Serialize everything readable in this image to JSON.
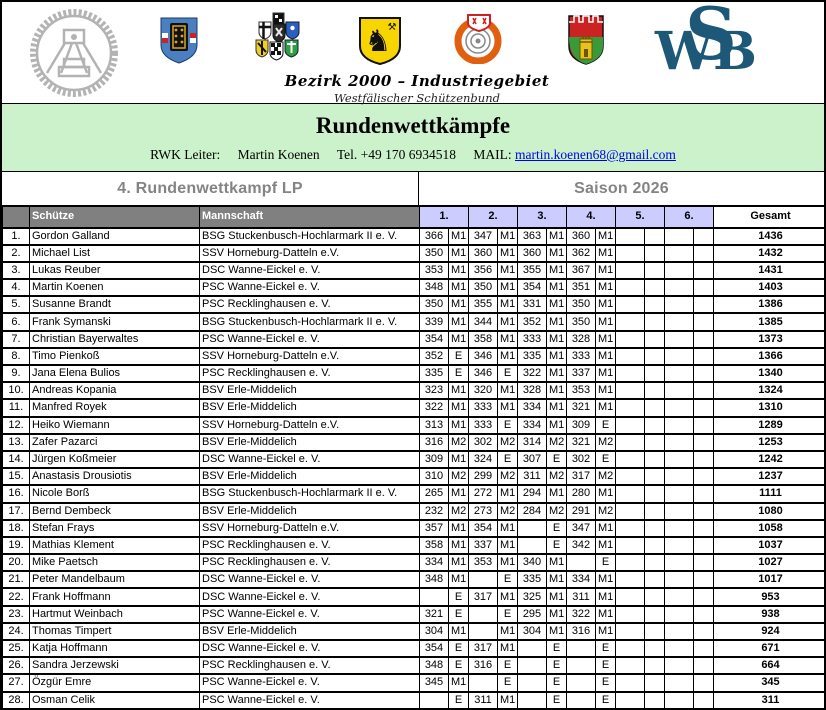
{
  "header": {
    "region_title": "Bezirk 2000 – Industriegebiet",
    "region_subtitle": "Westfälischer Schützenbund",
    "logos": [
      "mining-club-logo",
      "blue-gate-crest",
      "district-arms-cluster",
      "yellow-horse-crest",
      "round-target-badge",
      "castle-crest",
      "wsb-monogram"
    ],
    "wsb_letters": {
      "w": "W",
      "s": "S",
      "b": "B"
    }
  },
  "banner": {
    "title": "Rundenwettkämpfe",
    "contact_prefix": "RWK Leiter:",
    "leader_name": "Martin Koenen",
    "tel_label": "Tel.",
    "tel_number": "+49 170 6934518",
    "mail_label": "MAIL:",
    "mail_address": "martin.koenen68@gmail.com"
  },
  "section": {
    "left_title": "4. Rundenwettkampf LP",
    "right_title": "Saison 2026"
  },
  "table": {
    "columns": {
      "schuetze": "Schütze",
      "mannschaft": "Mannschaft",
      "rounds": [
        "1.",
        "2.",
        "3.",
        "4.",
        "5.",
        "6."
      ],
      "gesamt": "Gesamt"
    },
    "rows": [
      {
        "rank": "1.",
        "name": "Gordon Galland",
        "team": "BSG Stuckenbusch-Hochlarmark II e. V.",
        "rounds": [
          [
            "366",
            "M1"
          ],
          [
            "347",
            "M1"
          ],
          [
            "363",
            "M1"
          ],
          [
            "360",
            "M1"
          ],
          [
            "",
            ""
          ],
          [
            "",
            ""
          ]
        ],
        "gesamt": "1436"
      },
      {
        "rank": "2.",
        "name": "Michael List",
        "team": "SSV Horneburg-Datteln e.V.",
        "rounds": [
          [
            "350",
            "M1"
          ],
          [
            "360",
            "M1"
          ],
          [
            "360",
            "M1"
          ],
          [
            "362",
            "M1"
          ],
          [
            "",
            ""
          ],
          [
            "",
            ""
          ]
        ],
        "gesamt": "1432"
      },
      {
        "rank": "3.",
        "name": "Lukas Reuber",
        "team": "DSC Wanne-Eickel e. V.",
        "rounds": [
          [
            "353",
            "M1"
          ],
          [
            "356",
            "M1"
          ],
          [
            "355",
            "M1"
          ],
          [
            "367",
            "M1"
          ],
          [
            "",
            ""
          ],
          [
            "",
            ""
          ]
        ],
        "gesamt": "1431"
      },
      {
        "rank": "4.",
        "name": "Martin Koenen",
        "team": "PSC Wanne-Eickel e. V.",
        "rounds": [
          [
            "348",
            "M1"
          ],
          [
            "350",
            "M1"
          ],
          [
            "354",
            "M1"
          ],
          [
            "351",
            "M1"
          ],
          [
            "",
            ""
          ],
          [
            "",
            ""
          ]
        ],
        "gesamt": "1403"
      },
      {
        "rank": "5.",
        "name": "Susanne Brandt",
        "team": "PSC Recklinghausen e. V.",
        "rounds": [
          [
            "350",
            "M1"
          ],
          [
            "355",
            "M1"
          ],
          [
            "331",
            "M1"
          ],
          [
            "350",
            "M1"
          ],
          [
            "",
            ""
          ],
          [
            "",
            ""
          ]
        ],
        "gesamt": "1386"
      },
      {
        "rank": "6.",
        "name": "Frank Symanski",
        "team": "BSG Stuckenbusch-Hochlarmark II e. V.",
        "rounds": [
          [
            "339",
            "M1"
          ],
          [
            "344",
            "M1"
          ],
          [
            "352",
            "M1"
          ],
          [
            "350",
            "M1"
          ],
          [
            "",
            ""
          ],
          [
            "",
            ""
          ]
        ],
        "gesamt": "1385"
      },
      {
        "rank": "7.",
        "name": "Christian Bayerwaltes",
        "team": "PSC Wanne-Eickel e. V.",
        "rounds": [
          [
            "354",
            "M1"
          ],
          [
            "358",
            "M1"
          ],
          [
            "333",
            "M1"
          ],
          [
            "328",
            "M1"
          ],
          [
            "",
            ""
          ],
          [
            "",
            ""
          ]
        ],
        "gesamt": "1373"
      },
      {
        "rank": "8.",
        "name": "Timo Pienkoß",
        "team": "SSV Horneburg-Datteln e.V.",
        "rounds": [
          [
            "352",
            "E"
          ],
          [
            "346",
            "M1"
          ],
          [
            "335",
            "M1"
          ],
          [
            "333",
            "M1"
          ],
          [
            "",
            ""
          ],
          [
            "",
            ""
          ]
        ],
        "gesamt": "1366"
      },
      {
        "rank": "9.",
        "name": "Jana Elena Bulios",
        "team": "PSC Recklinghausen e. V.",
        "rounds": [
          [
            "335",
            "E"
          ],
          [
            "346",
            "E"
          ],
          [
            "322",
            "M1"
          ],
          [
            "337",
            "M1"
          ],
          [
            "",
            ""
          ],
          [
            "",
            ""
          ]
        ],
        "gesamt": "1340"
      },
      {
        "rank": "10.",
        "name": "Andreas Kopania",
        "team": "BSV Erle-Middelich",
        "rounds": [
          [
            "323",
            "M1"
          ],
          [
            "320",
            "M1"
          ],
          [
            "328",
            "M1"
          ],
          [
            "353",
            "M1"
          ],
          [
            "",
            ""
          ],
          [
            "",
            ""
          ]
        ],
        "gesamt": "1324"
      },
      {
        "rank": "11.",
        "name": "Manfred Royek",
        "team": "BSV Erle-Middelich",
        "rounds": [
          [
            "322",
            "M1"
          ],
          [
            "333",
            "M1"
          ],
          [
            "334",
            "M1"
          ],
          [
            "321",
            "M1"
          ],
          [
            "",
            ""
          ],
          [
            "",
            ""
          ]
        ],
        "gesamt": "1310"
      },
      {
        "rank": "12.",
        "name": "Heiko Wiemann",
        "team": "SSV Horneburg-Datteln e.V.",
        "rounds": [
          [
            "313",
            "M1"
          ],
          [
            "333",
            "E"
          ],
          [
            "334",
            "M1"
          ],
          [
            "309",
            "E"
          ],
          [
            "",
            ""
          ],
          [
            "",
            ""
          ]
        ],
        "gesamt": "1289"
      },
      {
        "rank": "13.",
        "name": "Zafer Pazarci",
        "team": "BSV Erle-Middelich",
        "rounds": [
          [
            "316",
            "M2"
          ],
          [
            "302",
            "M2"
          ],
          [
            "314",
            "M2"
          ],
          [
            "321",
            "M2"
          ],
          [
            "",
            ""
          ],
          [
            "",
            ""
          ]
        ],
        "gesamt": "1253"
      },
      {
        "rank": "14.",
        "name": "Jürgen Koßmeier",
        "team": "DSC Wanne-Eickel e. V.",
        "rounds": [
          [
            "309",
            "M1"
          ],
          [
            "324",
            "E"
          ],
          [
            "307",
            "E"
          ],
          [
            "302",
            "E"
          ],
          [
            "",
            ""
          ],
          [
            "",
            ""
          ]
        ],
        "gesamt": "1242"
      },
      {
        "rank": "15.",
        "name": "Anastasis Drousiotis",
        "team": "BSV Erle-Middelich",
        "rounds": [
          [
            "310",
            "M2"
          ],
          [
            "299",
            "M2"
          ],
          [
            "311",
            "M2"
          ],
          [
            "317",
            "M2"
          ],
          [
            "",
            ""
          ],
          [
            "",
            ""
          ]
        ],
        "gesamt": "1237"
      },
      {
        "rank": "16.",
        "name": "Nicole Borß",
        "team": "BSG Stuckenbusch-Hochlarmark II e. V.",
        "rounds": [
          [
            "265",
            "M1"
          ],
          [
            "272",
            "M1"
          ],
          [
            "294",
            "M1"
          ],
          [
            "280",
            "M1"
          ],
          [
            "",
            ""
          ],
          [
            "",
            ""
          ]
        ],
        "gesamt": "1111"
      },
      {
        "rank": "17.",
        "name": "Bernd Dembeck",
        "team": "BSV Erle-Middelich",
        "rounds": [
          [
            "232",
            "M2"
          ],
          [
            "273",
            "M2"
          ],
          [
            "284",
            "M2"
          ],
          [
            "291",
            "M2"
          ],
          [
            "",
            ""
          ],
          [
            "",
            ""
          ]
        ],
        "gesamt": "1080"
      },
      {
        "rank": "18.",
        "name": "Stefan Frays",
        "team": "SSV Horneburg-Datteln e.V.",
        "rounds": [
          [
            "357",
            "M1"
          ],
          [
            "354",
            "M1"
          ],
          [
            "",
            "E"
          ],
          [
            "347",
            "M1"
          ],
          [
            "",
            ""
          ],
          [
            "",
            ""
          ]
        ],
        "gesamt": "1058"
      },
      {
        "rank": "19.",
        "name": "Mathias Klement",
        "team": "PSC Recklinghausen e. V.",
        "rounds": [
          [
            "358",
            "M1"
          ],
          [
            "337",
            "M1"
          ],
          [
            "",
            "E"
          ],
          [
            "342",
            "M1"
          ],
          [
            "",
            ""
          ],
          [
            "",
            ""
          ]
        ],
        "gesamt": "1037"
      },
      {
        "rank": "20.",
        "name": "Mike Paetsch",
        "team": "PSC Recklinghausen e. V.",
        "rounds": [
          [
            "334",
            "M1"
          ],
          [
            "353",
            "M1"
          ],
          [
            "340",
            "M1"
          ],
          [
            "",
            "E"
          ],
          [
            "",
            ""
          ],
          [
            "",
            ""
          ]
        ],
        "gesamt": "1027"
      },
      {
        "rank": "21.",
        "name": "Peter Mandelbaum",
        "team": "DSC Wanne-Eickel e. V.",
        "rounds": [
          [
            "348",
            "M1"
          ],
          [
            "",
            "E"
          ],
          [
            "335",
            "M1"
          ],
          [
            "334",
            "M1"
          ],
          [
            "",
            ""
          ],
          [
            "",
            ""
          ]
        ],
        "gesamt": "1017"
      },
      {
        "rank": "22.",
        "name": "Frank Hoffmann",
        "team": "DSC Wanne-Eickel e. V.",
        "rounds": [
          [
            "",
            "E"
          ],
          [
            "317",
            "M1"
          ],
          [
            "325",
            "M1"
          ],
          [
            "311",
            "M1"
          ],
          [
            "",
            ""
          ],
          [
            "",
            ""
          ]
        ],
        "gesamt": "953"
      },
      {
        "rank": "23.",
        "name": "Hartmut Weinbach",
        "team": "PSC Wanne-Eickel e. V.",
        "rounds": [
          [
            "321",
            "E"
          ],
          [
            "",
            "E"
          ],
          [
            "295",
            "M1"
          ],
          [
            "322",
            "M1"
          ],
          [
            "",
            ""
          ],
          [
            "",
            ""
          ]
        ],
        "gesamt": "938"
      },
      {
        "rank": "24.",
        "name": "Thomas Timpert",
        "team": "BSV Erle-Middelich",
        "rounds": [
          [
            "304",
            "M1"
          ],
          [
            "",
            "M1"
          ],
          [
            "304",
            "M1"
          ],
          [
            "316",
            "M1"
          ],
          [
            "",
            ""
          ],
          [
            "",
            ""
          ]
        ],
        "gesamt": "924"
      },
      {
        "rank": "25.",
        "name": "Katja Hoffmann",
        "team": "DSC Wanne-Eickel e. V.",
        "rounds": [
          [
            "354",
            "E"
          ],
          [
            "317",
            "M1"
          ],
          [
            "",
            "E"
          ],
          [
            "",
            "E"
          ],
          [
            "",
            ""
          ],
          [
            "",
            ""
          ]
        ],
        "gesamt": "671"
      },
      {
        "rank": "26.",
        "name": "Sandra Jerzewski",
        "team": "PSC Recklinghausen e. V.",
        "rounds": [
          [
            "348",
            "E"
          ],
          [
            "316",
            "E"
          ],
          [
            "",
            "E"
          ],
          [
            "",
            "E"
          ],
          [
            "",
            ""
          ],
          [
            "",
            ""
          ]
        ],
        "gesamt": "664"
      },
      {
        "rank": "27.",
        "name": "Özgür Emre",
        "team": "PSC Wanne-Eickel e. V.",
        "rounds": [
          [
            "345",
            "M1"
          ],
          [
            "",
            "E"
          ],
          [
            "",
            "E"
          ],
          [
            "",
            "E"
          ],
          [
            "",
            ""
          ],
          [
            "",
            ""
          ]
        ],
        "gesamt": "345"
      },
      {
        "rank": "28.",
        "name": "Osman Celik",
        "team": "PSC Wanne-Eickel e. V.",
        "rounds": [
          [
            "",
            "E"
          ],
          [
            "311",
            "M1"
          ],
          [
            "",
            "E"
          ],
          [
            "",
            "E"
          ],
          [
            "",
            ""
          ],
          [
            "",
            ""
          ]
        ],
        "gesamt": "311"
      }
    ]
  },
  "colors": {
    "banner_green": "#ccf2cc",
    "round_header_lavender": "#ccccff",
    "table_header_gray": "#808080",
    "section_title_gray": "#848484",
    "wsb_blue": "#1d5878",
    "link_blue": "#0000ee"
  }
}
